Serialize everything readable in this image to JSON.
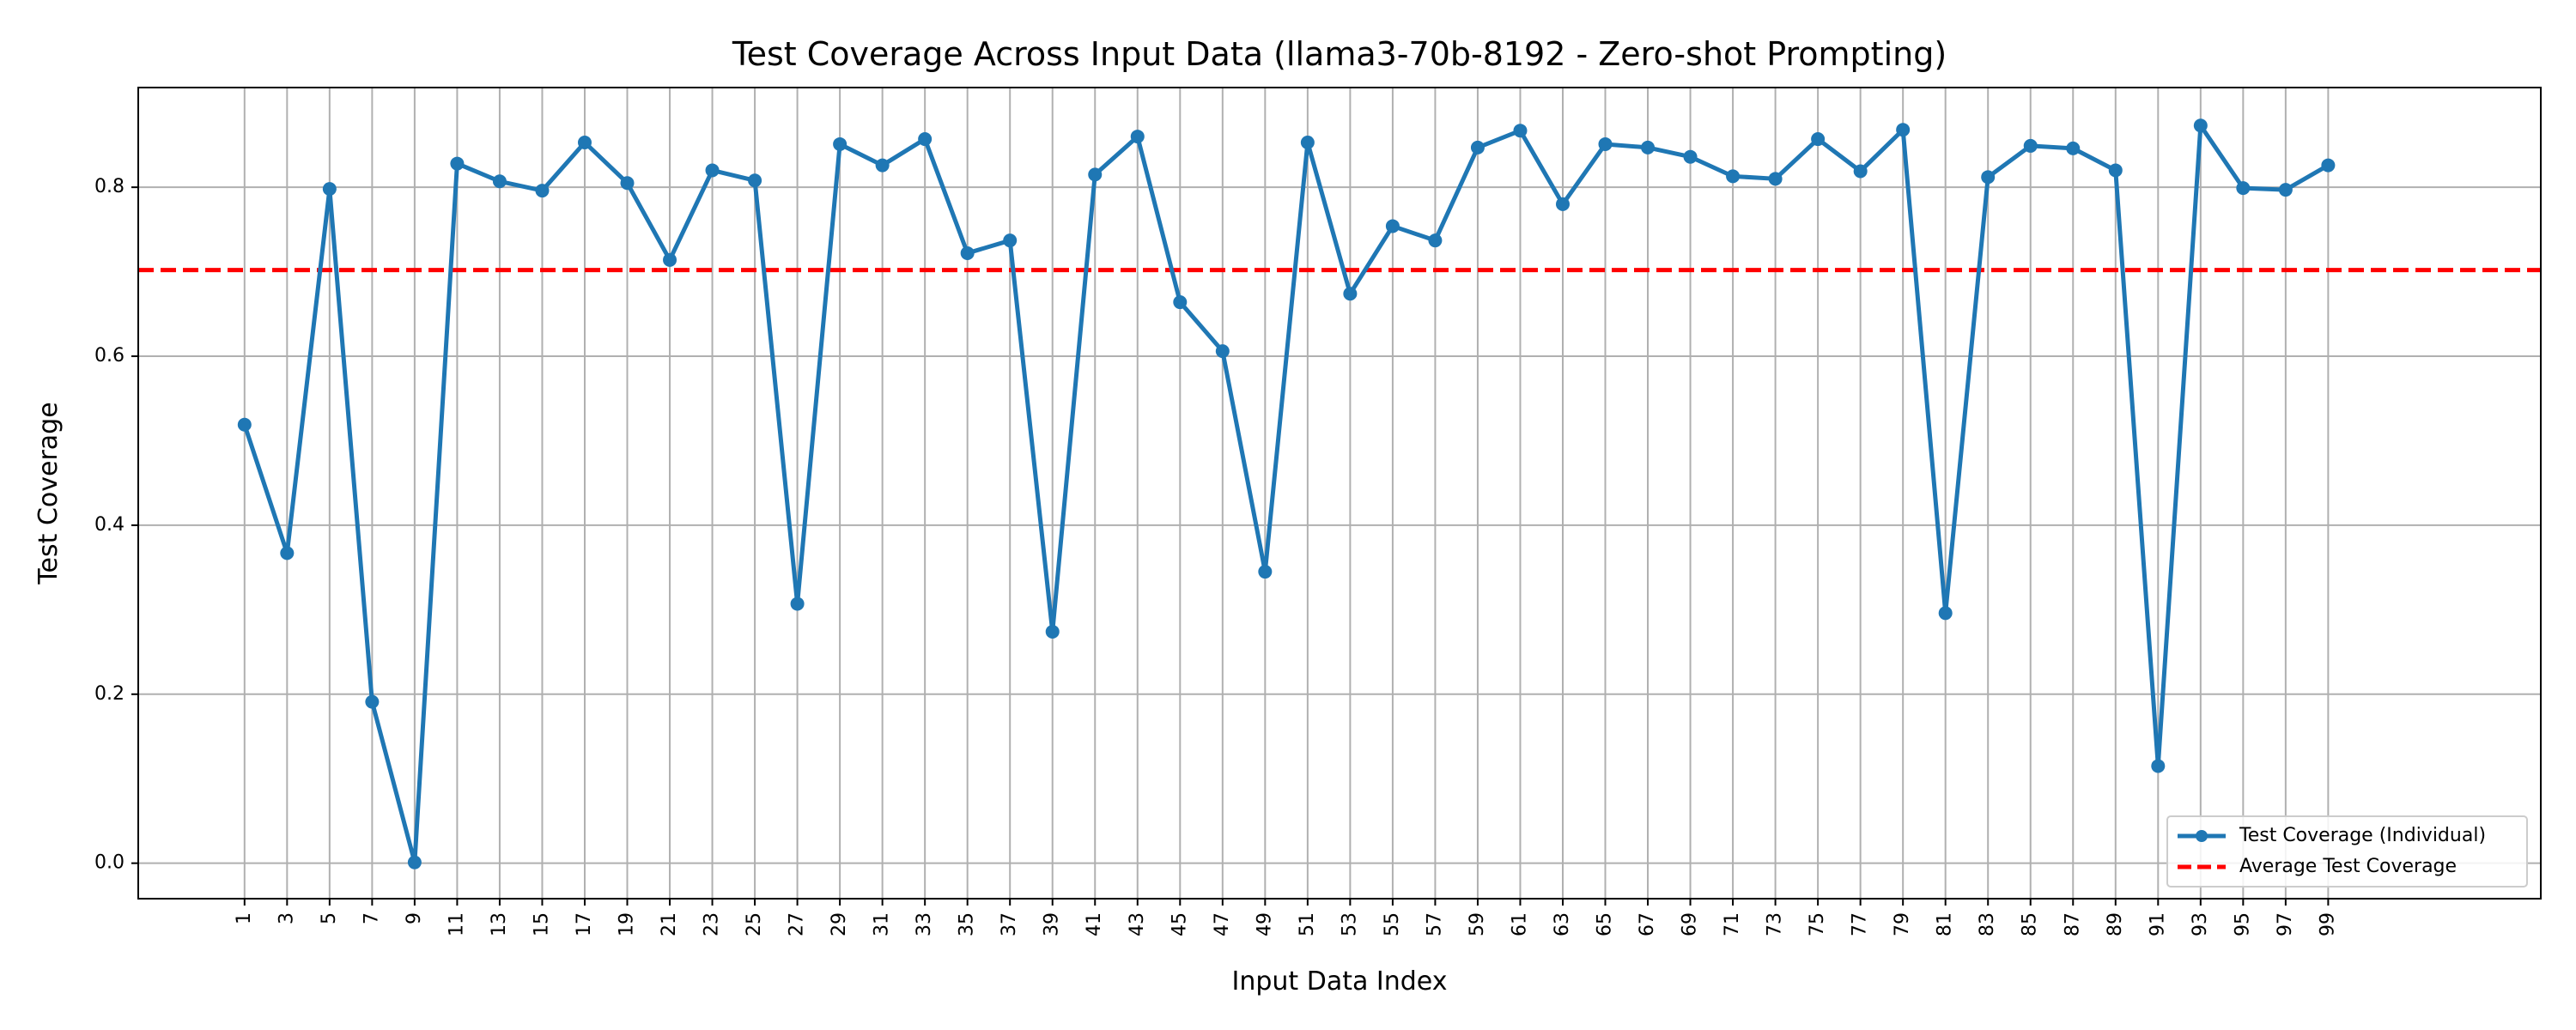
{
  "chart_data": {
    "type": "line",
    "title": "Test Coverage Across Input Data (llama3-70b-8192 - Zero-shot Prompting)",
    "xlabel": "Input Data Index",
    "ylabel": "Test Coverage",
    "x": [
      1,
      3,
      5,
      7,
      9,
      11,
      13,
      15,
      17,
      19,
      21,
      23,
      25,
      27,
      29,
      31,
      33,
      35,
      37,
      39,
      41,
      43,
      45,
      47,
      49,
      51,
      53,
      55,
      57,
      59,
      61,
      63,
      65,
      67,
      69,
      71,
      73,
      75,
      77,
      79,
      81,
      83,
      85,
      87,
      89,
      91,
      93,
      95,
      97,
      99
    ],
    "x_tick_labels": [
      "1",
      "3",
      "5",
      "7",
      "9",
      "11",
      "13",
      "15",
      "17",
      "19",
      "21",
      "23",
      "25",
      "27",
      "29",
      "31",
      "33",
      "35",
      "37",
      "39",
      "41",
      "43",
      "45",
      "47",
      "49",
      "51",
      "53",
      "55",
      "57",
      "59",
      "61",
      "63",
      "65",
      "67",
      "69",
      "71",
      "73",
      "75",
      "77",
      "79",
      "81",
      "83",
      "85",
      "87",
      "89",
      "91",
      "93",
      "95",
      "97",
      "99"
    ],
    "xlim": [
      -4,
      109
    ],
    "ylim": [
      -0.042,
      0.918
    ],
    "y_ticks": [
      0.0,
      0.2,
      0.4,
      0.6,
      0.8
    ],
    "y_tick_labels": [
      "0.0",
      "0.2",
      "0.4",
      "0.6",
      "0.8"
    ],
    "grid": true,
    "legend_position": "bottom-right",
    "series": [
      {
        "name": "Test Coverage (Individual)",
        "color": "#1f77b4",
        "style": "solid-with-markers",
        "values": [
          0.519,
          0.367,
          0.798,
          0.191,
          0.001,
          0.828,
          0.807,
          0.796,
          0.853,
          0.805,
          0.714,
          0.82,
          0.808,
          0.307,
          0.851,
          0.826,
          0.857,
          0.722,
          0.737,
          0.274,
          0.815,
          0.86,
          0.664,
          0.606,
          0.345,
          0.853,
          0.674,
          0.754,
          0.737,
          0.847,
          0.867,
          0.78,
          0.851,
          0.847,
          0.836,
          0.813,
          0.81,
          0.857,
          0.819,
          0.868,
          0.296,
          0.812,
          0.849,
          0.846,
          0.82,
          0.115,
          0.873,
          0.799,
          0.797,
          0.826
        ]
      }
    ],
    "reference_lines": [
      {
        "name": "Average Test Coverage",
        "y": 0.702,
        "color": "#ff0000",
        "style": "dashed"
      }
    ]
  }
}
